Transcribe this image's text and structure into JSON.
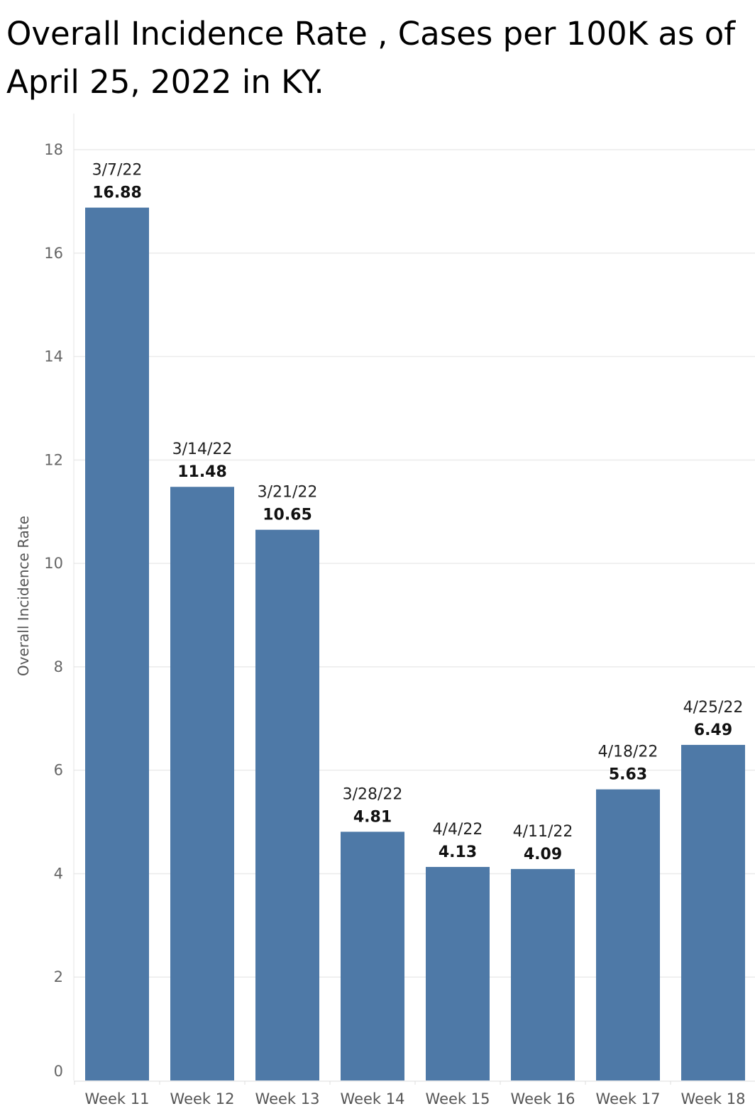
{
  "chart_data": {
    "type": "bar",
    "title": "Overall Incidence Rate , Cases per 100K as of April 25, 2022 in KY.",
    "xlabel": "",
    "ylabel": "Overall Incidence Rate",
    "categories": [
      "Week 11",
      "Week 12",
      "Week 13",
      "Week 14",
      "Week 15",
      "Week 16",
      "Week 17",
      "Week 18"
    ],
    "dates": [
      "3/7/22",
      "3/14/22",
      "3/21/22",
      "3/28/22",
      "4/4/22",
      "4/11/22",
      "4/18/22",
      "4/25/22"
    ],
    "values": [
      16.88,
      11.48,
      10.65,
      4.81,
      4.13,
      4.09,
      5.63,
      6.49
    ],
    "value_labels": [
      "16.88",
      "11.48",
      "10.65",
      "4.81",
      "4.13",
      "4.09",
      "5.63",
      "6.49"
    ],
    "yticks": [
      0,
      2,
      4,
      6,
      8,
      10,
      12,
      14,
      16,
      18
    ],
    "ylim": [
      0,
      18
    ],
    "grid": true,
    "legend": "none",
    "bar_color": "#4e79a7",
    "grid_color": "#ebebeb"
  }
}
